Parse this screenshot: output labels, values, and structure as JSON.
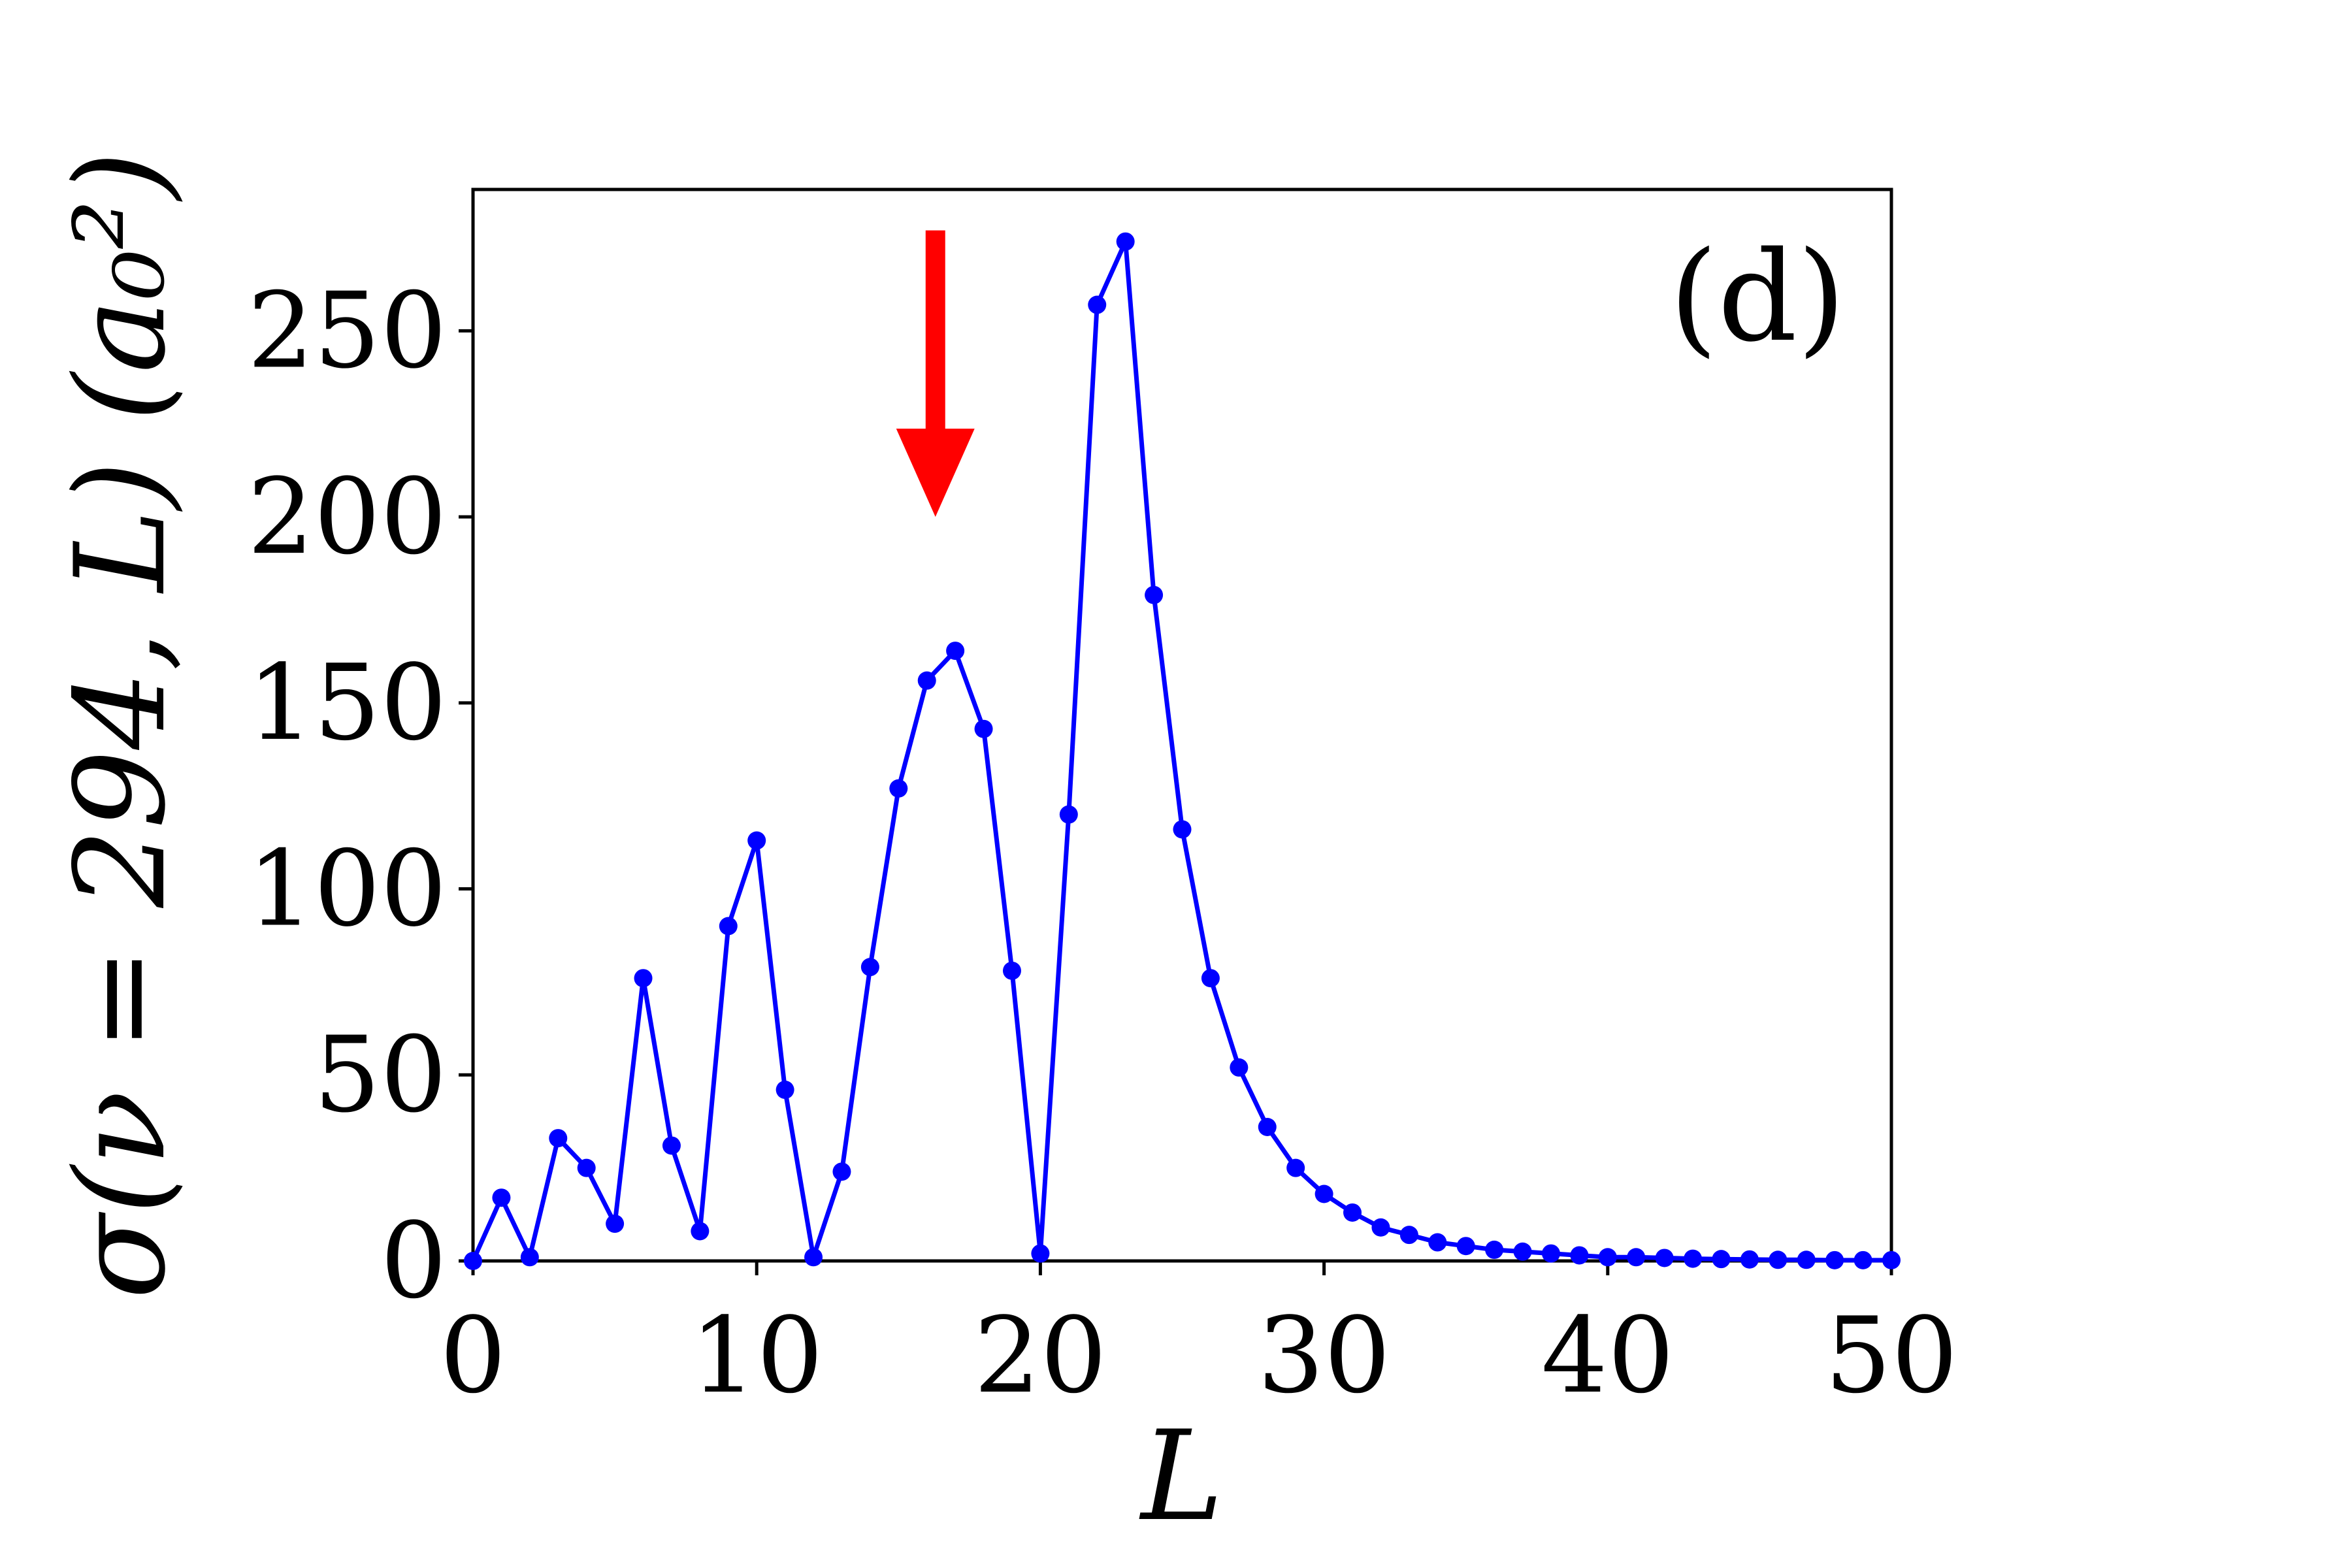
{
  "chart_data": {
    "type": "line",
    "title": "",
    "xlabel": "L",
    "ylabel": "σ(ν = 294, L) (a₀²)",
    "panel_label": "(d)",
    "xlim": [
      0,
      50
    ],
    "ylim": [
      0,
      288
    ],
    "xticks": [
      "0",
      "10",
      "20",
      "30",
      "40",
      "50"
    ],
    "yticks": [
      "0",
      "50",
      "100",
      "150",
      "200",
      "250"
    ],
    "grid": false,
    "legend": "none",
    "series": [
      {
        "color": "#0000ff",
        "marker": "circle",
        "x": [
          0,
          1,
          2,
          3,
          4,
          5,
          6,
          7,
          8,
          9,
          10,
          11,
          12,
          13,
          14,
          15,
          16,
          17,
          18,
          19,
          20,
          21,
          22,
          23,
          24,
          25,
          26,
          27,
          28,
          29,
          30,
          31,
          32,
          33,
          34,
          35,
          36,
          37,
          38,
          39,
          40,
          41,
          42,
          43,
          44,
          45,
          46,
          47,
          48,
          49,
          50
        ],
        "y": [
          0,
          17,
          1,
          33,
          25,
          10,
          76,
          31,
          8,
          90,
          113,
          46,
          1,
          24,
          79,
          127,
          156,
          164,
          143,
          78,
          2,
          120,
          257,
          274,
          179,
          116,
          76,
          52,
          36,
          25,
          18,
          13,
          9,
          7,
          5,
          4,
          3,
          2.5,
          2,
          1.5,
          1,
          1,
          0.8,
          0.6,
          0.5,
          0.4,
          0.3,
          0.3,
          0.2,
          0.2,
          0.2
        ]
      }
    ],
    "annotations": [
      {
        "type": "arrow",
        "color": "#ff0000",
        "direction": "down",
        "x": 16.3,
        "y_from": 277,
        "y_to": 200
      }
    ]
  }
}
